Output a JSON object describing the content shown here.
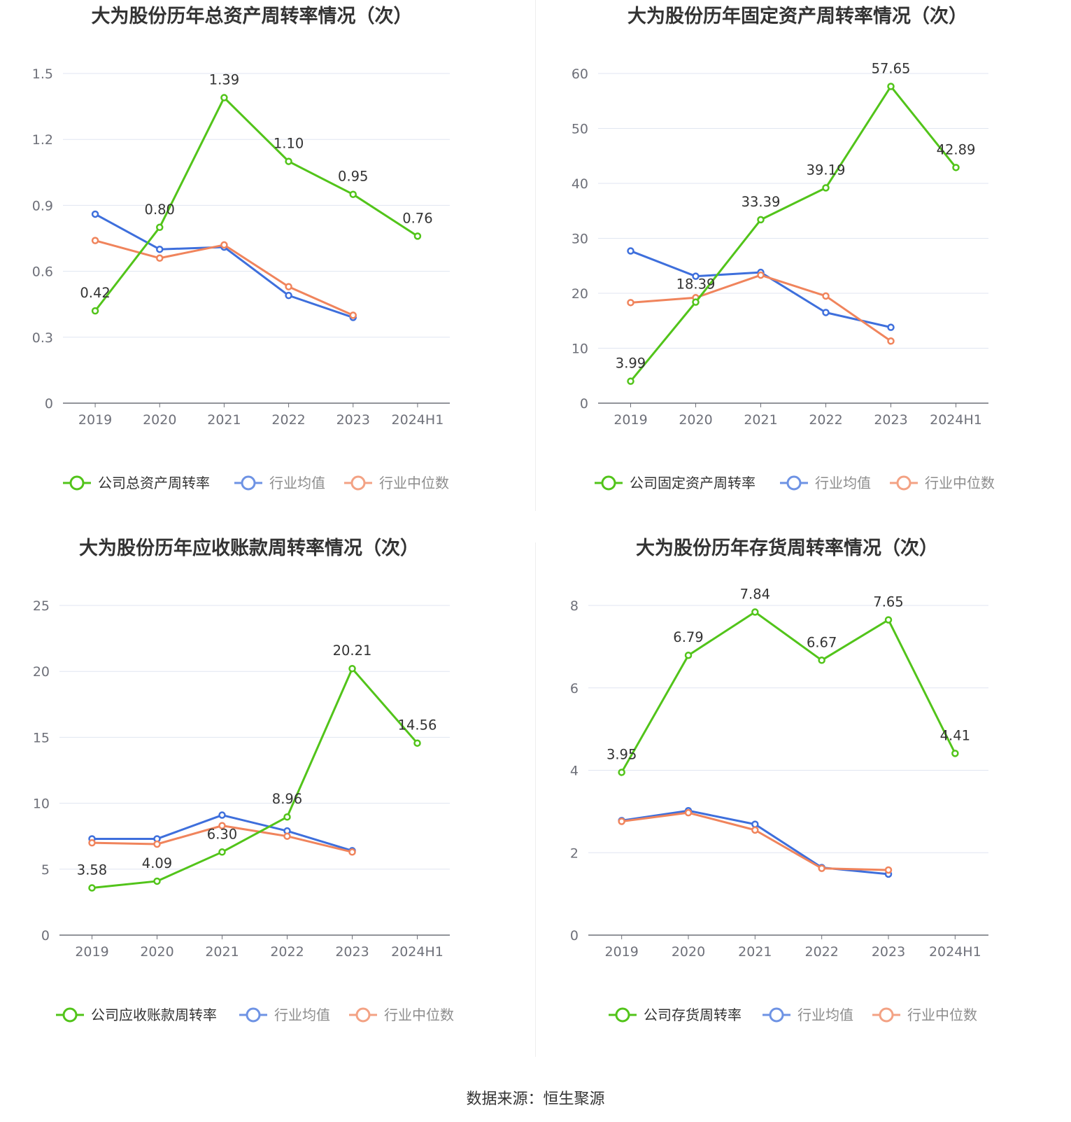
{
  "source_text": "数据来源：恒生聚源",
  "colors": {
    "company": "#52c41a",
    "avg": "#3e6fdc",
    "median": "#f0845c",
    "grid": "#e0e6f1",
    "axis": "#6e7079"
  },
  "chart_data": [
    {
      "type": "line",
      "title": "大为股份历年总资产周转率情况（次）",
      "categories": [
        "2019",
        "2020",
        "2021",
        "2022",
        "2023",
        "2024H1"
      ],
      "yticks": [
        "0",
        "0.3",
        "0.6",
        "0.9",
        "1.2",
        "1.5"
      ],
      "ylim": [
        0,
        1.5
      ],
      "legend_position": "bottom",
      "series": [
        {
          "name": "公司总资产周转率",
          "key": "company",
          "values": [
            0.42,
            0.8,
            1.39,
            1.1,
            0.95,
            0.76
          ],
          "labels": [
            "0.42",
            "0.80",
            "1.39",
            "1.10",
            "0.95",
            "0.76"
          ]
        },
        {
          "name": "行业均值",
          "key": "avg",
          "values": [
            0.86,
            0.7,
            0.71,
            0.49,
            0.39,
            null
          ]
        },
        {
          "name": "行业中位数",
          "key": "median",
          "values": [
            0.74,
            0.66,
            0.72,
            0.53,
            0.4,
            null
          ]
        }
      ]
    },
    {
      "type": "line",
      "title": "大为股份历年固定资产周转率情况（次）",
      "categories": [
        "2019",
        "2020",
        "2021",
        "2022",
        "2023",
        "2024H1"
      ],
      "yticks": [
        "0",
        "10",
        "20",
        "30",
        "40",
        "50",
        "60"
      ],
      "ylim": [
        0,
        60
      ],
      "legend_position": "bottom",
      "series": [
        {
          "name": "公司固定资产周转率",
          "key": "company",
          "values": [
            3.99,
            18.39,
            33.39,
            39.19,
            57.65,
            42.89
          ],
          "labels": [
            "3.99",
            "18.39",
            "33.39",
            "39.19",
            "57.65",
            "42.89"
          ]
        },
        {
          "name": "行业均值",
          "key": "avg",
          "values": [
            27.7,
            23.1,
            23.8,
            16.5,
            13.8,
            null
          ]
        },
        {
          "name": "行业中位数",
          "key": "median",
          "values": [
            18.3,
            19.2,
            23.3,
            19.5,
            11.3,
            null
          ]
        }
      ]
    },
    {
      "type": "line",
      "title": "大为股份历年应收账款周转率情况（次）",
      "categories": [
        "2019",
        "2020",
        "2021",
        "2022",
        "2023",
        "2024H1"
      ],
      "yticks": [
        "0",
        "5",
        "10",
        "15",
        "20",
        "25"
      ],
      "ylim": [
        0,
        25
      ],
      "legend_position": "bottom",
      "series": [
        {
          "name": "公司应收账款周转率",
          "key": "company",
          "values": [
            3.58,
            4.09,
            6.3,
            8.96,
            20.21,
            14.56
          ],
          "labels": [
            "3.58",
            "4.09",
            "6.30",
            "8.96",
            "20.21",
            "14.56"
          ]
        },
        {
          "name": "行业均值",
          "key": "avg",
          "values": [
            7.3,
            7.3,
            9.1,
            7.9,
            6.4,
            null
          ]
        },
        {
          "name": "行业中位数",
          "key": "median",
          "values": [
            7.0,
            6.9,
            8.3,
            7.5,
            6.3,
            null
          ]
        }
      ]
    },
    {
      "type": "line",
      "title": "大为股份历年存货周转率情况（次）",
      "categories": [
        "2019",
        "2020",
        "2021",
        "2022",
        "2023",
        "2024H1"
      ],
      "yticks": [
        "0",
        "2",
        "4",
        "6",
        "8"
      ],
      "ylim": [
        0,
        8
      ],
      "legend_position": "bottom",
      "series": [
        {
          "name": "公司存货周转率",
          "key": "company",
          "values": [
            3.95,
            6.79,
            7.84,
            6.67,
            7.65,
            4.41
          ],
          "labels": [
            "3.95",
            "6.79",
            "7.84",
            "6.67",
            "7.65",
            "4.41"
          ]
        },
        {
          "name": "行业均值",
          "key": "avg",
          "values": [
            2.78,
            3.02,
            2.69,
            1.64,
            1.48,
            null
          ]
        },
        {
          "name": "行业中位数",
          "key": "median",
          "values": [
            2.76,
            2.97,
            2.55,
            1.62,
            1.58,
            null
          ]
        }
      ]
    }
  ]
}
